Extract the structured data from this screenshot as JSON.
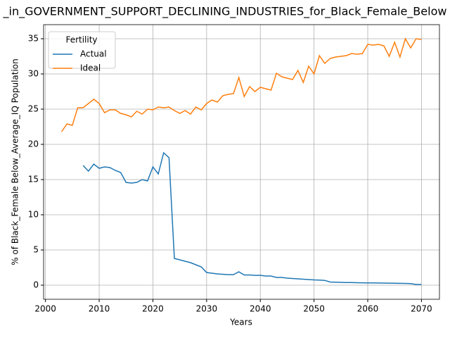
{
  "chart_data": {
    "type": "line",
    "title": "_in_GOVERNMENT_SUPPORT_DECLINING_INDUSTRIES_for_Black_Female_Below",
    "xlabel": "Years",
    "ylabel": "% of Black_Female Below_Average_IQ Population",
    "legend_title": "Fertility",
    "legend_loc": "upper left",
    "grid": true,
    "x": [
      2003,
      2004,
      2005,
      2006,
      2007,
      2008,
      2009,
      2010,
      2011,
      2012,
      2013,
      2014,
      2015,
      2016,
      2017,
      2018,
      2019,
      2020,
      2021,
      2022,
      2023,
      2024,
      2025,
      2026,
      2027,
      2028,
      2029,
      2030,
      2031,
      2032,
      2033,
      2034,
      2035,
      2036,
      2037,
      2038,
      2039,
      2040,
      2041,
      2042,
      2043,
      2044,
      2045,
      2046,
      2047,
      2048,
      2049,
      2050,
      2051,
      2052,
      2053,
      2054,
      2055,
      2056,
      2057,
      2058,
      2059,
      2060,
      2061,
      2062,
      2063,
      2064,
      2065,
      2066,
      2067,
      2068,
      2069,
      2070
    ],
    "series": [
      {
        "name": "Actual",
        "color": "#1f77b4",
        "values": [
          null,
          null,
          null,
          null,
          17.0,
          16.2,
          17.2,
          16.6,
          16.8,
          16.7,
          16.3,
          16.0,
          14.6,
          14.5,
          14.6,
          15.0,
          14.8,
          16.8,
          15.8,
          18.8,
          18.1,
          3.8,
          3.6,
          3.4,
          3.2,
          2.9,
          2.6,
          1.8,
          1.7,
          1.6,
          1.55,
          1.5,
          1.5,
          1.9,
          1.45,
          1.45,
          1.4,
          1.4,
          1.3,
          1.3,
          1.1,
          1.1,
          1.0,
          0.95,
          0.9,
          0.85,
          0.8,
          0.75,
          0.72,
          0.68,
          0.45,
          0.42,
          0.4,
          0.38,
          0.37,
          0.35,
          0.34,
          0.33,
          0.32,
          0.31,
          0.3,
          0.29,
          0.28,
          0.26,
          0.25,
          0.22,
          0.1,
          0.1
        ]
      },
      {
        "name": "Ideal",
        "color": "#ff7f0e",
        "values": [
          21.8,
          22.9,
          22.7,
          25.2,
          25.2,
          25.8,
          26.4,
          25.8,
          24.5,
          24.9,
          24.9,
          24.4,
          24.2,
          23.9,
          24.7,
          24.3,
          25.0,
          24.9,
          25.3,
          25.2,
          25.3,
          24.8,
          24.4,
          24.8,
          24.3,
          25.3,
          24.9,
          25.8,
          26.3,
          26.0,
          26.9,
          27.1,
          27.2,
          29.5,
          26.8,
          28.2,
          27.5,
          28.1,
          27.9,
          27.7,
          30.1,
          29.6,
          29.4,
          29.2,
          30.5,
          28.8,
          31.1,
          30.0,
          32.6,
          31.5,
          32.2,
          32.4,
          32.5,
          32.6,
          32.9,
          32.8,
          32.9,
          34.2,
          34.1,
          34.2,
          34.0,
          32.5,
          34.5,
          32.4,
          35.0,
          33.7,
          35.0,
          34.9
        ]
      }
    ],
    "xlim": [
      1999.65,
      2073.35
    ],
    "xticks": [
      2000,
      2010,
      2020,
      2030,
      2040,
      2050,
      2060,
      2070
    ],
    "ylim": [
      -2,
      37
    ],
    "yticks": [
      0,
      5,
      10,
      15,
      20,
      25,
      30,
      35
    ]
  }
}
